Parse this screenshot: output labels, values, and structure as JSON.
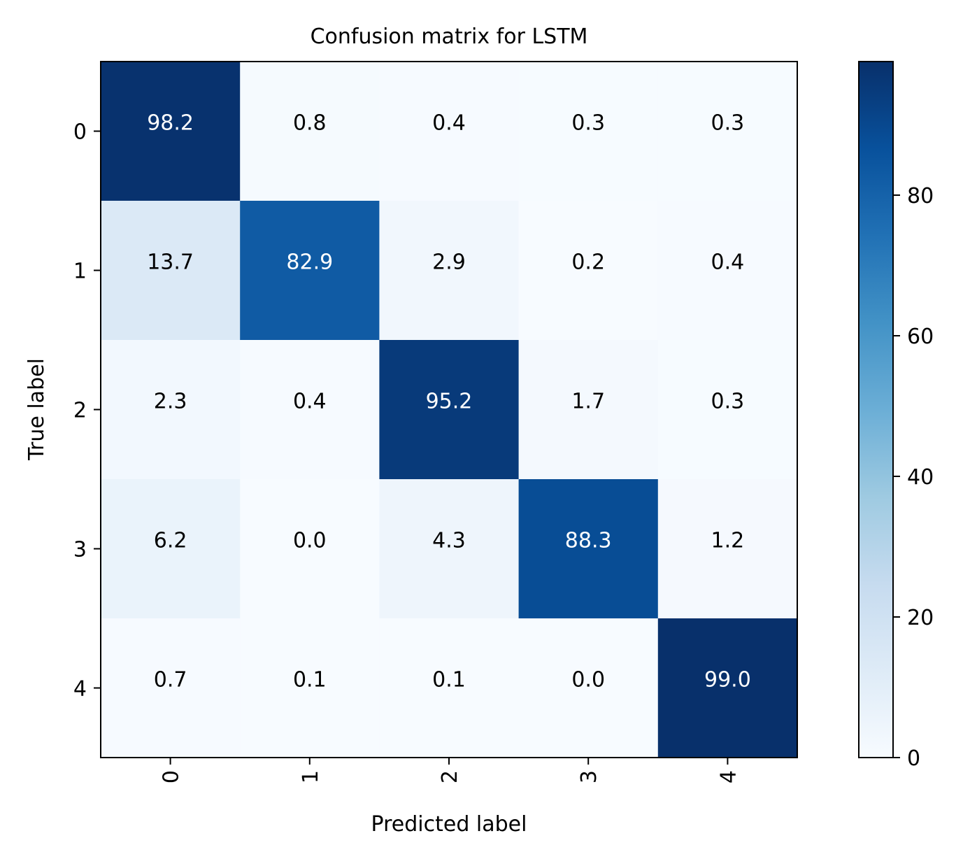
{
  "chart_data": {
    "type": "heatmap",
    "title": "Confusion matrix for LSTM",
    "xlabel": "Predicted label",
    "ylabel": "True label",
    "x_categories": [
      "0",
      "1",
      "2",
      "3",
      "4"
    ],
    "y_categories": [
      "0",
      "1",
      "2",
      "3",
      "4"
    ],
    "values": [
      [
        98.2,
        0.8,
        0.4,
        0.3,
        0.3
      ],
      [
        13.7,
        82.9,
        2.9,
        0.2,
        0.4
      ],
      [
        2.3,
        0.4,
        95.2,
        1.7,
        0.3
      ],
      [
        6.2,
        0.0,
        4.3,
        88.3,
        1.2
      ],
      [
        0.7,
        0.1,
        0.1,
        0.0,
        99.0
      ]
    ],
    "cell_labels": [
      [
        "98.2",
        "0.8",
        "0.4",
        "0.3",
        "0.3"
      ],
      [
        "13.7",
        "82.9",
        "2.9",
        "0.2",
        "0.4"
      ],
      [
        "2.3",
        "0.4",
        "95.2",
        "1.7",
        "0.3"
      ],
      [
        "6.2",
        "0.0",
        "4.3",
        "88.3",
        "1.2"
      ],
      [
        "0.7",
        "0.1",
        "0.1",
        "0.0",
        "99.0"
      ]
    ],
    "colormap": "Blues",
    "vmin": 0,
    "vmax": 99.0,
    "colorbar_ticks": [
      0,
      20,
      40,
      60,
      80
    ],
    "colorbar_tick_labels": [
      "0",
      "20",
      "40",
      "60",
      "80"
    ],
    "text_color_dark": "#000000",
    "text_color_light": "#ffffff"
  }
}
